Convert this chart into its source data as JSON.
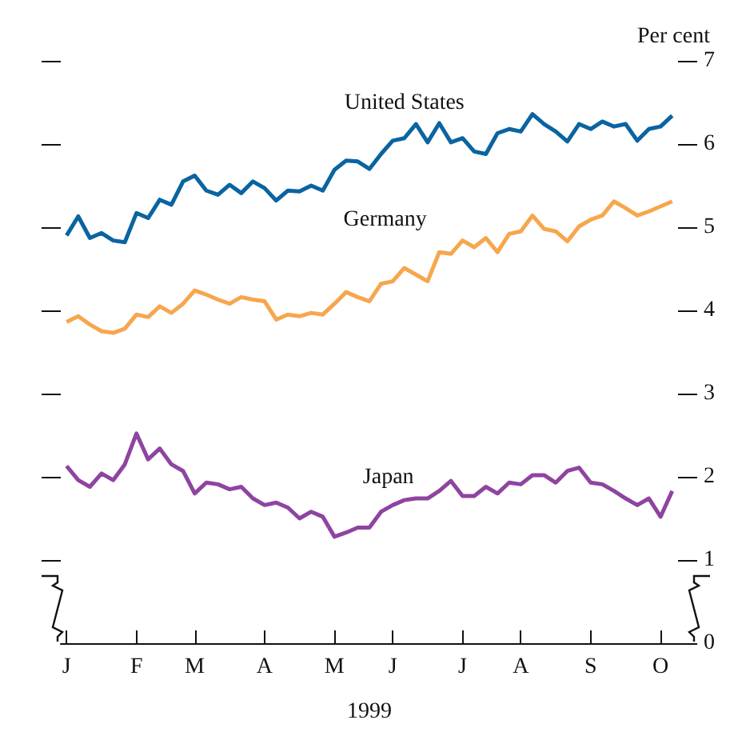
{
  "chart_data": {
    "type": "line",
    "ylabel": "Per cent",
    "xlabel": "1999",
    "categories": [
      "J",
      null,
      null,
      null,
      null,
      null,
      "F",
      null,
      null,
      null,
      null,
      "M",
      null,
      null,
      null,
      null,
      null,
      "A",
      null,
      null,
      null,
      null,
      null,
      "M",
      null,
      null,
      null,
      null,
      "J",
      null,
      null,
      null,
      null,
      null,
      "J",
      null,
      null,
      null,
      null,
      "A",
      null,
      null,
      null,
      null,
      null,
      "S",
      null,
      null,
      null,
      null,
      null,
      "O",
      null
    ],
    "series": [
      {
        "name": "United States",
        "color": "#0a64a0",
        "values": [
          4.9,
          5.13,
          4.87,
          4.93,
          4.84,
          4.82,
          5.17,
          5.11,
          5.33,
          5.27,
          5.55,
          5.62,
          5.44,
          5.39,
          5.51,
          5.41,
          5.55,
          5.47,
          5.32,
          5.44,
          5.43,
          5.5,
          5.44,
          5.69,
          5.8,
          5.79,
          5.7,
          5.88,
          6.04,
          6.07,
          6.24,
          6.02,
          6.25,
          6.02,
          6.07,
          5.91,
          5.88,
          6.13,
          6.18,
          6.15,
          6.36,
          6.24,
          6.15,
          6.03,
          6.24,
          6.18,
          6.27,
          6.21,
          6.24,
          6.04,
          6.18,
          6.21,
          6.34
        ]
      },
      {
        "name": "Germany",
        "color": "#f7a64e",
        "values": [
          3.86,
          3.93,
          3.83,
          3.75,
          3.73,
          3.78,
          3.95,
          3.92,
          4.05,
          3.97,
          4.08,
          4.24,
          4.19,
          4.13,
          4.08,
          4.16,
          4.13,
          4.11,
          3.89,
          3.95,
          3.93,
          3.97,
          3.95,
          4.08,
          4.22,
          4.16,
          4.11,
          4.32,
          4.35,
          4.51,
          4.43,
          4.35,
          4.7,
          4.68,
          4.84,
          4.76,
          4.87,
          4.7,
          4.92,
          4.95,
          5.14,
          4.98,
          4.95,
          4.83,
          5.01,
          5.09,
          5.14,
          5.31,
          5.23,
          5.14,
          5.19,
          5.25,
          5.31
        ]
      },
      {
        "name": "Japan",
        "color": "#8e44a0",
        "values": [
          2.13,
          1.96,
          1.88,
          2.04,
          1.96,
          2.15,
          2.52,
          2.21,
          2.34,
          2.15,
          2.07,
          1.8,
          1.93,
          1.91,
          1.85,
          1.88,
          1.74,
          1.66,
          1.69,
          1.63,
          1.5,
          1.58,
          1.52,
          1.28,
          1.33,
          1.39,
          1.39,
          1.58,
          1.66,
          1.72,
          1.74,
          1.74,
          1.83,
          1.95,
          1.77,
          1.77,
          1.88,
          1.8,
          1.93,
          1.91,
          2.02,
          2.02,
          1.93,
          2.07,
          2.11,
          1.93,
          1.91,
          1.83,
          1.74,
          1.66,
          1.74,
          1.52,
          1.83
        ]
      }
    ],
    "ylim": [
      0,
      7
    ],
    "yticks": [
      0,
      1,
      2,
      3,
      4,
      5,
      6,
      7
    ],
    "grid": false,
    "legend": false,
    "marker": "none",
    "line_style": "solid"
  }
}
